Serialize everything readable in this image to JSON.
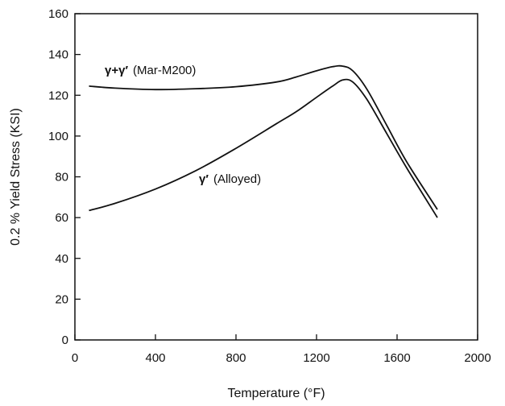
{
  "chart_data": {
    "type": "line",
    "xlabel": "Temperature (°F)",
    "ylabel": "0.2 % Yield Stress (KSI)",
    "xlim": [
      0,
      2000
    ],
    "ylim": [
      0,
      160
    ],
    "xticks": [
      0,
      400,
      800,
      1200,
      1600,
      2000
    ],
    "yticks": [
      0,
      20,
      40,
      60,
      80,
      100,
      120,
      140,
      160
    ],
    "grid": false,
    "series": [
      {
        "name": "γ+γ′ (Mar-M200)",
        "symbol": "γ+γ′",
        "detail": "(Mar-M200)",
        "x": [
          70,
          200,
          400,
          600,
          800,
          1000,
          1100,
          1200,
          1280,
          1330,
          1380,
          1450,
          1550,
          1650,
          1800
        ],
        "y": [
          124.5,
          123.5,
          122.8,
          123.2,
          124.2,
          126.5,
          129,
          132,
          134,
          134.3,
          132,
          123,
          105,
          87,
          64
        ]
      },
      {
        "name": "γ′ (Alloyed)",
        "symbol": "γ′",
        "detail": "(Alloyed)",
        "x": [
          70,
          200,
          400,
          600,
          800,
          1000,
          1100,
          1200,
          1280,
          1330,
          1380,
          1450,
          1550,
          1650,
          1800
        ],
        "y": [
          63.5,
          67,
          74,
          83,
          94,
          106,
          112,
          119,
          124.5,
          127.5,
          126.5,
          118,
          101,
          84,
          60
        ]
      }
    ]
  }
}
